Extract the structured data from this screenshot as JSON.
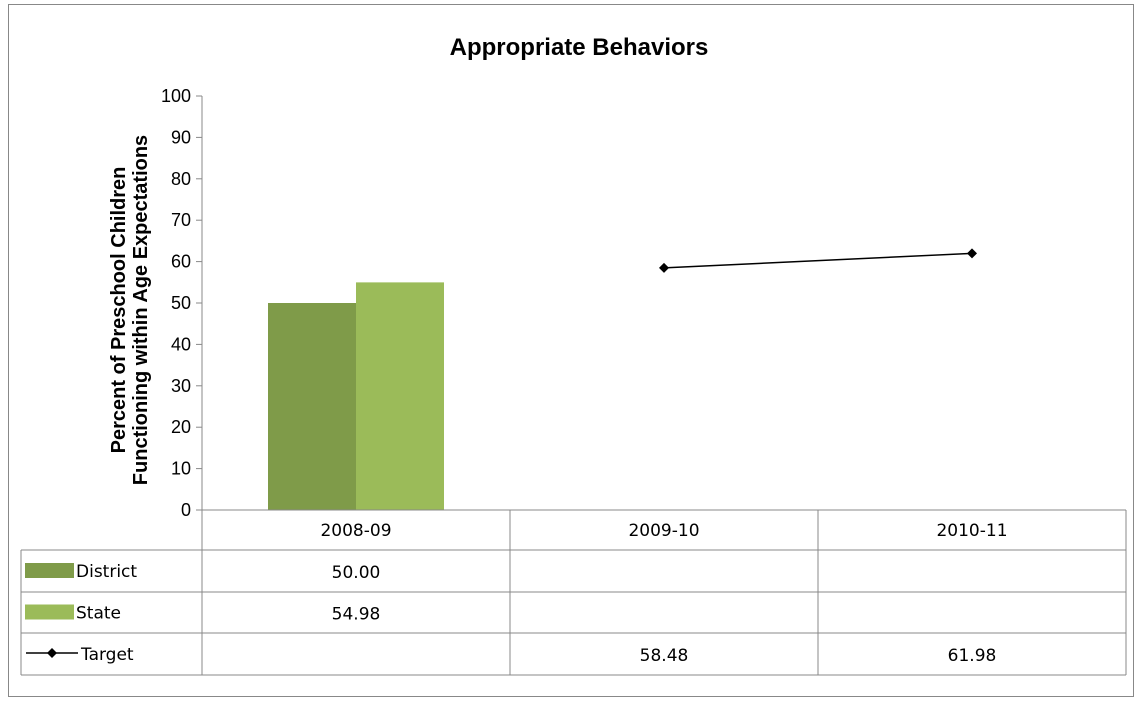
{
  "chart_data": {
    "type": "bar",
    "title": "Appropriate Behaviors",
    "ylabel_lines": [
      "Percent of Preschool Children",
      "Functioning within Age Expectations"
    ],
    "ylim": [
      0,
      100
    ],
    "yticks": [
      0,
      10,
      20,
      30,
      40,
      50,
      60,
      70,
      80,
      90,
      100
    ],
    "categories": [
      "2008-09",
      "2009-10",
      "2010-11"
    ],
    "grid": false,
    "legend_placement": "data-table",
    "series": [
      {
        "name": "District",
        "kind": "bar",
        "color": "#7f9b49",
        "values": [
          50.0,
          null,
          null
        ],
        "labels": [
          "50.00",
          "",
          ""
        ]
      },
      {
        "name": "State",
        "kind": "bar",
        "color": "#9bbb59",
        "values": [
          54.98,
          null,
          null
        ],
        "labels": [
          "54.98",
          "",
          ""
        ]
      },
      {
        "name": "Target",
        "kind": "line",
        "color": "#000000",
        "marker": "diamond",
        "values": [
          null,
          58.48,
          61.98
        ],
        "labels": [
          "",
          "58.48",
          "61.98"
        ]
      }
    ]
  }
}
